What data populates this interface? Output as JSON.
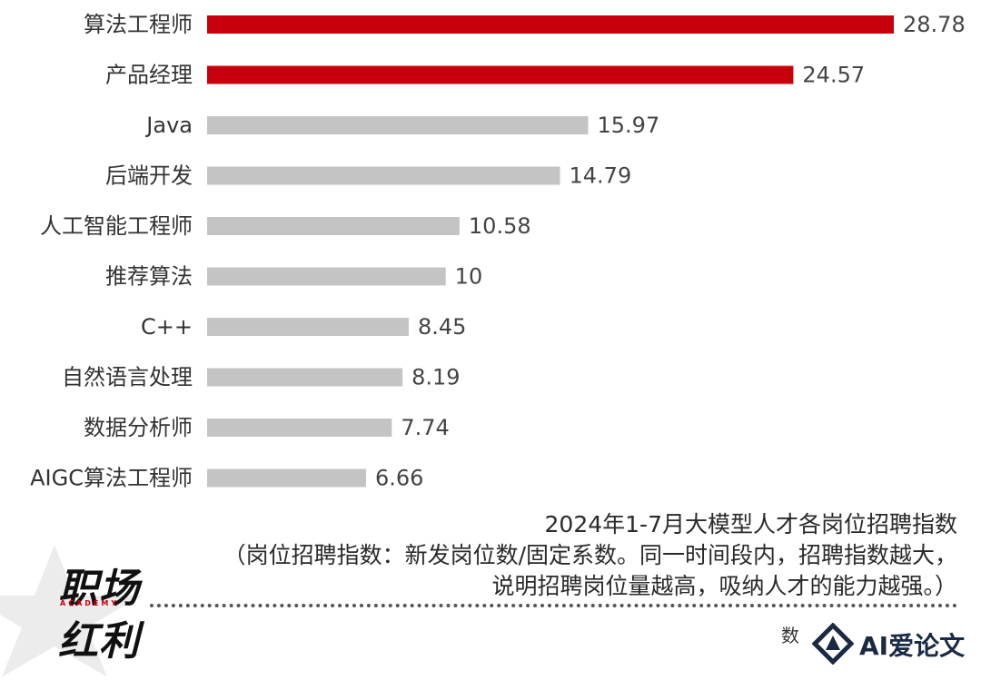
{
  "chart_data": {
    "type": "bar",
    "orientation": "horizontal",
    "categories": [
      "算法工程师",
      "产品经理",
      "Java",
      "后端开发",
      "人工智能工程师",
      "推荐算法",
      "C++",
      "自然语言处理",
      "数据分析师",
      "AIGC算法工程师"
    ],
    "values": [
      28.78,
      24.57,
      15.97,
      14.79,
      10.58,
      10,
      8.45,
      8.19,
      7.74,
      6.66
    ],
    "value_labels": [
      "28.78",
      "24.57",
      "15.97",
      "14.79",
      "10.58",
      "10",
      "8.45",
      "8.19",
      "7.74",
      "6.66"
    ],
    "highlight_count": 2,
    "xlim": [
      0,
      28.78
    ],
    "title": "2024年1-7月大模型人才各岗位招聘指数",
    "note_line1": "（岗位招聘指数：新发岗位数/固定系数。同一时间段内，招聘指数越大，",
    "note_line2": "说明招聘岗位量越高，吸纳人才的能力越强。）",
    "grid": false,
    "legend": "none"
  },
  "colors": {
    "highlight": "#c8000d",
    "bar": "#c4c4c4",
    "label": "#333333",
    "value_label": "#444444"
  },
  "logo": {
    "line1": "职场",
    "line2": "红利",
    "small": "ACADEMY"
  },
  "source": {
    "text": "数"
  },
  "watermark": {
    "text": "AI爱论文",
    "icon": "diamond-a-icon"
  }
}
